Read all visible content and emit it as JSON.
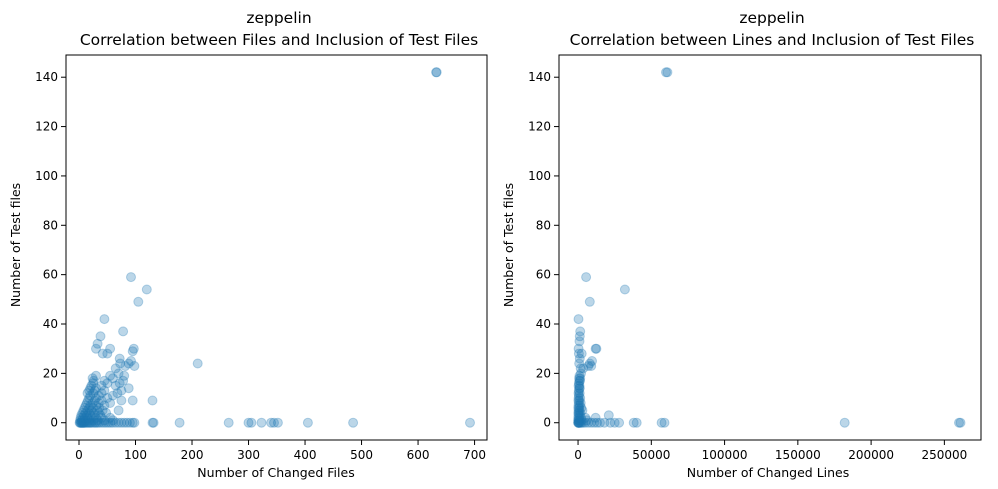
{
  "chart_data": [
    {
      "type": "scatter",
      "title": "zeppelin",
      "subtitle": "Correlation between Files and Inclusion of Test Files",
      "xlabel": "Number of Changed Files",
      "ylabel": "Number of Test files",
      "xlim": [
        -23,
        722
      ],
      "ylim": [
        -7,
        149
      ],
      "xticks": [
        0,
        100,
        200,
        300,
        400,
        500,
        600,
        700
      ],
      "xtick_labels": [
        "0",
        "100",
        "200",
        "300",
        "400",
        "500",
        "600",
        "700"
      ],
      "yticks": [
        0,
        20,
        40,
        60,
        80,
        100,
        120,
        140
      ],
      "ytick_labels": [
        "0",
        "20",
        "40",
        "60",
        "80",
        "100",
        "120",
        "140"
      ],
      "color": "#1f77b4",
      "opacity": 0.3,
      "points": [
        [
          1,
          0
        ],
        [
          2,
          0
        ],
        [
          3,
          0
        ],
        [
          4,
          0
        ],
        [
          5,
          0
        ],
        [
          6,
          0
        ],
        [
          7,
          0
        ],
        [
          8,
          0
        ],
        [
          9,
          0
        ],
        [
          10,
          0
        ],
        [
          12,
          0
        ],
        [
          14,
          0
        ],
        [
          16,
          0
        ],
        [
          18,
          0
        ],
        [
          20,
          0
        ],
        [
          22,
          0
        ],
        [
          25,
          0
        ],
        [
          28,
          0
        ],
        [
          30,
          0
        ],
        [
          33,
          0
        ],
        [
          36,
          0
        ],
        [
          40,
          0
        ],
        [
          44,
          0
        ],
        [
          48,
          0
        ],
        [
          52,
          0
        ],
        [
          56,
          0
        ],
        [
          60,
          0
        ],
        [
          65,
          0
        ],
        [
          70,
          0
        ],
        [
          75,
          0
        ],
        [
          80,
          0
        ],
        [
          85,
          0
        ],
        [
          90,
          0
        ],
        [
          95,
          0
        ],
        [
          98,
          0
        ],
        [
          130,
          0
        ],
        [
          132,
          0
        ],
        [
          178,
          0
        ],
        [
          265,
          0
        ],
        [
          300,
          0
        ],
        [
          305,
          0
        ],
        [
          323,
          0
        ],
        [
          340,
          0
        ],
        [
          345,
          0
        ],
        [
          352,
          0
        ],
        [
          405,
          0
        ],
        [
          485,
          0
        ],
        [
          692,
          0
        ],
        [
          2,
          1
        ],
        [
          5,
          1
        ],
        [
          8,
          1
        ],
        [
          12,
          1
        ],
        [
          18,
          1
        ],
        [
          25,
          1
        ],
        [
          33,
          1
        ],
        [
          45,
          1
        ],
        [
          60,
          1
        ],
        [
          3,
          2
        ],
        [
          7,
          2
        ],
        [
          11,
          2
        ],
        [
          15,
          2
        ],
        [
          22,
          2
        ],
        [
          30,
          2
        ],
        [
          40,
          2
        ],
        [
          55,
          2
        ],
        [
          4,
          3
        ],
        [
          9,
          3
        ],
        [
          14,
          3
        ],
        [
          20,
          3
        ],
        [
          28,
          3
        ],
        [
          38,
          3
        ],
        [
          6,
          4
        ],
        [
          12,
          4
        ],
        [
          18,
          4
        ],
        [
          26,
          4
        ],
        [
          35,
          4
        ],
        [
          48,
          4
        ],
        [
          8,
          5
        ],
        [
          15,
          5
        ],
        [
          22,
          5
        ],
        [
          32,
          5
        ],
        [
          42,
          5
        ],
        [
          70,
          5
        ],
        [
          10,
          6
        ],
        [
          18,
          6
        ],
        [
          25,
          6
        ],
        [
          36,
          6
        ],
        [
          12,
          7
        ],
        [
          20,
          7
        ],
        [
          30,
          7
        ],
        [
          45,
          7
        ],
        [
          14,
          8
        ],
        [
          24,
          8
        ],
        [
          35,
          8
        ],
        [
          55,
          8
        ],
        [
          16,
          9
        ],
        [
          28,
          9
        ],
        [
          40,
          9
        ],
        [
          75,
          9
        ],
        [
          95,
          9
        ],
        [
          130,
          9
        ],
        [
          18,
          10
        ],
        [
          30,
          10
        ],
        [
          50,
          10
        ],
        [
          20,
          11
        ],
        [
          35,
          11
        ],
        [
          60,
          11
        ],
        [
          15,
          12
        ],
        [
          25,
          12
        ],
        [
          40,
          12
        ],
        [
          68,
          12
        ],
        [
          18,
          13
        ],
        [
          28,
          13
        ],
        [
          45,
          13
        ],
        [
          75,
          13
        ],
        [
          20,
          14
        ],
        [
          30,
          14
        ],
        [
          88,
          14
        ],
        [
          22,
          15
        ],
        [
          40,
          15
        ],
        [
          65,
          15
        ],
        [
          25,
          16
        ],
        [
          50,
          16
        ],
        [
          72,
          16
        ],
        [
          26,
          17
        ],
        [
          45,
          17
        ],
        [
          78,
          17
        ],
        [
          24,
          18
        ],
        [
          60,
          18
        ],
        [
          30,
          19
        ],
        [
          55,
          19
        ],
        [
          80,
          19
        ],
        [
          70,
          20
        ],
        [
          65,
          22
        ],
        [
          82,
          23
        ],
        [
          98,
          23
        ],
        [
          73,
          24
        ],
        [
          88,
          24
        ],
        [
          210,
          24
        ],
        [
          92,
          25
        ],
        [
          72,
          26
        ],
        [
          50,
          28
        ],
        [
          42,
          28
        ],
        [
          95,
          29
        ],
        [
          97,
          30
        ],
        [
          55,
          30
        ],
        [
          30,
          30
        ],
        [
          33,
          32
        ],
        [
          38,
          35
        ],
        [
          78,
          37
        ],
        [
          45,
          42
        ],
        [
          105,
          49
        ],
        [
          120,
          54
        ],
        [
          92,
          59
        ],
        [
          632,
          142
        ],
        [
          633,
          142
        ]
      ]
    },
    {
      "type": "scatter",
      "title": "zeppelin",
      "subtitle": "Correlation between Lines and Inclusion of Test Files",
      "xlabel": "Number of Changed Lines",
      "ylabel": "Number of Test files",
      "xlim": [
        -13000,
        275000
      ],
      "ylim": [
        -7,
        149
      ],
      "xticks": [
        0,
        50000,
        100000,
        150000,
        200000,
        250000
      ],
      "xtick_labels": [
        "0",
        "50000",
        "100000",
        "150000",
        "200000",
        "250000"
      ],
      "yticks": [
        0,
        20,
        40,
        60,
        80,
        100,
        120,
        140
      ],
      "ytick_labels": [
        "0",
        "20",
        "40",
        "60",
        "80",
        "100",
        "120",
        "140"
      ],
      "color": "#1f77b4",
      "opacity": 0.3,
      "points": [
        [
          50,
          0
        ],
        [
          150,
          0
        ],
        [
          300,
          0
        ],
        [
          500,
          0
        ],
        [
          800,
          0
        ],
        [
          1200,
          0
        ],
        [
          1800,
          0
        ],
        [
          2500,
          0
        ],
        [
          3500,
          0
        ],
        [
          5000,
          0
        ],
        [
          7000,
          0
        ],
        [
          9000,
          0
        ],
        [
          11000,
          0
        ],
        [
          13000,
          0
        ],
        [
          15000,
          0
        ],
        [
          18000,
          0
        ],
        [
          22000,
          0
        ],
        [
          25000,
          0
        ],
        [
          28000,
          0
        ],
        [
          38000,
          0
        ],
        [
          40000,
          0
        ],
        [
          57000,
          0
        ],
        [
          59000,
          0
        ],
        [
          182000,
          0
        ],
        [
          260000,
          0
        ],
        [
          261000,
          0
        ],
        [
          100,
          1
        ],
        [
          400,
          1
        ],
        [
          1000,
          1
        ],
        [
          2500,
          1
        ],
        [
          6000,
          1
        ],
        [
          200,
          2
        ],
        [
          800,
          2
        ],
        [
          2000,
          2
        ],
        [
          5000,
          2
        ],
        [
          12000,
          2
        ],
        [
          21000,
          3
        ],
        [
          300,
          3
        ],
        [
          1200,
          3
        ],
        [
          150,
          4
        ],
        [
          600,
          4
        ],
        [
          1500,
          4
        ],
        [
          400,
          5
        ],
        [
          1000,
          5
        ],
        [
          3000,
          5
        ],
        [
          200,
          6
        ],
        [
          800,
          6
        ],
        [
          2200,
          6
        ],
        [
          300,
          7
        ],
        [
          1200,
          7
        ],
        [
          500,
          8
        ],
        [
          1800,
          8
        ],
        [
          250,
          9
        ],
        [
          900,
          9
        ],
        [
          400,
          10
        ],
        [
          1500,
          10
        ],
        [
          600,
          11
        ],
        [
          300,
          12
        ],
        [
          1100,
          12
        ],
        [
          500,
          13
        ],
        [
          800,
          14
        ],
        [
          1200,
          14
        ],
        [
          400,
          15
        ],
        [
          1000,
          15
        ],
        [
          600,
          16
        ],
        [
          900,
          17
        ],
        [
          1300,
          17
        ],
        [
          700,
          18
        ],
        [
          1500,
          18
        ],
        [
          1000,
          19
        ],
        [
          2000,
          20
        ],
        [
          1800,
          22
        ],
        [
          3500,
          22
        ],
        [
          7000,
          23
        ],
        [
          9000,
          23
        ],
        [
          800,
          24
        ],
        [
          8000,
          24
        ],
        [
          9500,
          25
        ],
        [
          1200,
          26
        ],
        [
          600,
          28
        ],
        [
          2500,
          28
        ],
        [
          400,
          30
        ],
        [
          12000,
          30
        ],
        [
          12500,
          30
        ],
        [
          1000,
          33
        ],
        [
          1200,
          35
        ],
        [
          1500,
          37
        ],
        [
          300,
          42
        ],
        [
          8000,
          49
        ],
        [
          32000,
          54
        ],
        [
          5500,
          59
        ],
        [
          60000,
          142
        ],
        [
          61000,
          142
        ]
      ]
    }
  ]
}
